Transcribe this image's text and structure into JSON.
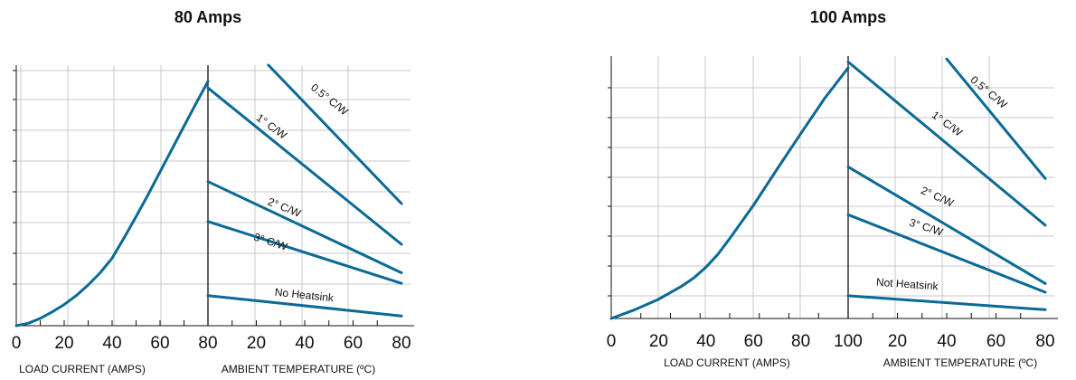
{
  "colors": {
    "curve": "#0a6a96",
    "grid": "#c8c8c8",
    "axis": "#111111"
  },
  "chart_data": [
    {
      "type": "line",
      "title": "80 Amps",
      "left_panel": {
        "xlabel": "LOAD CURRENT (AMPS)",
        "xlim": [
          0,
          80
        ],
        "ticks": [
          "0",
          "20",
          "40",
          "60",
          "80"
        ],
        "series": [
          {
            "x": [
              0,
              5,
              10,
              15,
              20,
              25,
              30,
              35,
              40,
              45,
              50,
              55,
              60,
              65,
              70,
              75,
              80
            ],
            "y": [
              0.0,
              0.3,
              0.9,
              1.7,
              2.6,
              3.7,
              5.0,
              6.5,
              8.3,
              10.8,
              13.4,
              16.1,
              18.9,
              21.7,
              24.5,
              27.3,
              30.0
            ]
          }
        ]
      },
      "right_panel": {
        "xlabel": "AMBIENT TEMPERATURE (ºC)",
        "xlim": [
          0,
          80
        ],
        "ticks": [
          "20",
          "40",
          "60",
          "80"
        ],
        "series": [
          {
            "name": "0.5° C/W",
            "x": [
              25,
              80
            ],
            "y": [
              32.0,
              15.0
            ]
          },
          {
            "name": "1° C/W",
            "x": [
              0,
              80
            ],
            "y": [
              29.2,
              10.0
            ]
          },
          {
            "name": "2° C/W",
            "x": [
              0,
              80
            ],
            "y": [
              17.7,
              6.5
            ]
          },
          {
            "name": "3° C/W",
            "x": [
              0,
              80
            ],
            "y": [
              12.8,
              5.2
            ]
          },
          {
            "name": "No Heatsink",
            "x": [
              0,
              80
            ],
            "y": [
              3.7,
              1.2
            ]
          }
        ]
      },
      "ylim": [
        0,
        32
      ]
    },
    {
      "type": "line",
      "title": "100 Amps",
      "left_panel": {
        "xlabel": "LOAD CURRENT (AMPS)",
        "xlim": [
          0,
          100
        ],
        "ticks": [
          "0",
          "20",
          "40",
          "60",
          "80",
          "100"
        ],
        "series": [
          {
            "x": [
              0,
              10,
              20,
              30,
              35,
              40,
              45,
              50,
              60,
              70,
              80,
              90,
              100
            ],
            "y": [
              0.0,
              1.5,
              3.3,
              5.6,
              7.0,
              8.8,
              11.0,
              13.7,
              19.4,
              25.6,
              31.7,
              37.7,
              43.0
            ]
          }
        ]
      },
      "right_panel": {
        "xlabel": "AMBIENT TEMPERATURE (ºC)",
        "xlim": [
          0,
          80
        ],
        "ticks": [
          "20",
          "40",
          "60",
          "80"
        ],
        "series": [
          {
            "name": "0.5° C/W",
            "x": [
              40,
              80
            ],
            "y": [
              44.5,
              24.0
            ]
          },
          {
            "name": "1° C/W",
            "x": [
              0,
              80
            ],
            "y": [
              44.0,
              16.0
            ]
          },
          {
            "name": "2° C/W",
            "x": [
              0,
              80
            ],
            "y": [
              26.0,
              6.0
            ]
          },
          {
            "name": "3° C/W",
            "x": [
              0,
              80
            ],
            "y": [
              17.8,
              4.5
            ]
          },
          {
            "name": "Not Heatsink",
            "x": [
              0,
              80
            ],
            "y": [
              3.9,
              1.5
            ]
          }
        ]
      },
      "ylim": [
        0,
        45
      ]
    }
  ]
}
